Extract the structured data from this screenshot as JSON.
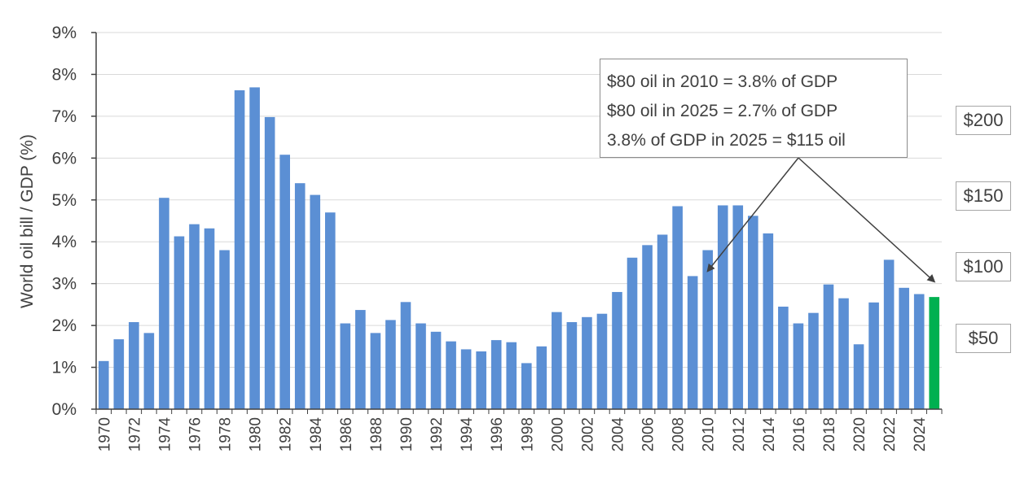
{
  "chart_data": {
    "type": "bar",
    "ylabel": "World oil bill / GDP (%)",
    "xlabel": "",
    "ylim": [
      0,
      9
    ],
    "y_ticks": [
      "0%",
      "1%",
      "2%",
      "3%",
      "4%",
      "5%",
      "6%",
      "7%",
      "8%",
      "9%"
    ],
    "x_tick_labels": [
      "1970",
      "1972",
      "1974",
      "1976",
      "1978",
      "1980",
      "1982",
      "1984",
      "1986",
      "1988",
      "1990",
      "1992",
      "1994",
      "1996",
      "1998",
      "2000",
      "2002",
      "2004",
      "2006",
      "2008",
      "2010",
      "2012",
      "2014",
      "2016",
      "2018",
      "2020",
      "2022",
      "2024"
    ],
    "grid": true,
    "categories": [
      1970,
      1971,
      1972,
      1973,
      1974,
      1975,
      1976,
      1977,
      1978,
      1979,
      1980,
      1981,
      1982,
      1983,
      1984,
      1985,
      1986,
      1987,
      1988,
      1989,
      1990,
      1991,
      1992,
      1993,
      1994,
      1995,
      1996,
      1997,
      1998,
      1999,
      2000,
      2001,
      2002,
      2003,
      2004,
      2005,
      2006,
      2007,
      2008,
      2009,
      2010,
      2011,
      2012,
      2013,
      2014,
      2015,
      2016,
      2017,
      2018,
      2019,
      2020,
      2021,
      2022,
      2023,
      2024,
      2025
    ],
    "values": [
      1.15,
      1.67,
      2.08,
      1.82,
      5.05,
      4.13,
      4.42,
      4.32,
      3.8,
      7.62,
      7.69,
      6.98,
      6.08,
      5.4,
      5.12,
      4.7,
      2.05,
      2.37,
      1.82,
      2.13,
      2.56,
      2.05,
      1.85,
      1.62,
      1.43,
      1.38,
      1.65,
      1.6,
      1.1,
      1.5,
      2.32,
      2.08,
      2.2,
      2.28,
      2.8,
      3.62,
      3.92,
      4.17,
      4.85,
      3.18,
      3.8,
      4.87,
      4.87,
      4.62,
      4.2,
      2.45,
      2.05,
      2.3,
      2.98,
      2.65,
      1.55,
      2.55,
      3.57,
      2.9,
      2.75,
      2.68
    ],
    "bar_color": "#5B8FD4",
    "highlight_color": "#00B050",
    "highlight_category": 2025,
    "annotation": {
      "lines": [
        "$80 oil in 2010 = 3.8% of GDP",
        "$80 oil in 2025 = 2.7% of GDP",
        "3.8% of GDP in 2025 = $115 oil"
      ],
      "arrow_targets": [
        {
          "category": 2010,
          "value": 3.3
        },
        {
          "category": 2025,
          "value": 3.05
        }
      ]
    },
    "price_labels": [
      {
        "label": "$200",
        "value": 6.9
      },
      {
        "label": "$150",
        "value": 5.1
      },
      {
        "label": "$100",
        "value": 3.4
      },
      {
        "label": "$50",
        "value": 1.7
      }
    ]
  }
}
